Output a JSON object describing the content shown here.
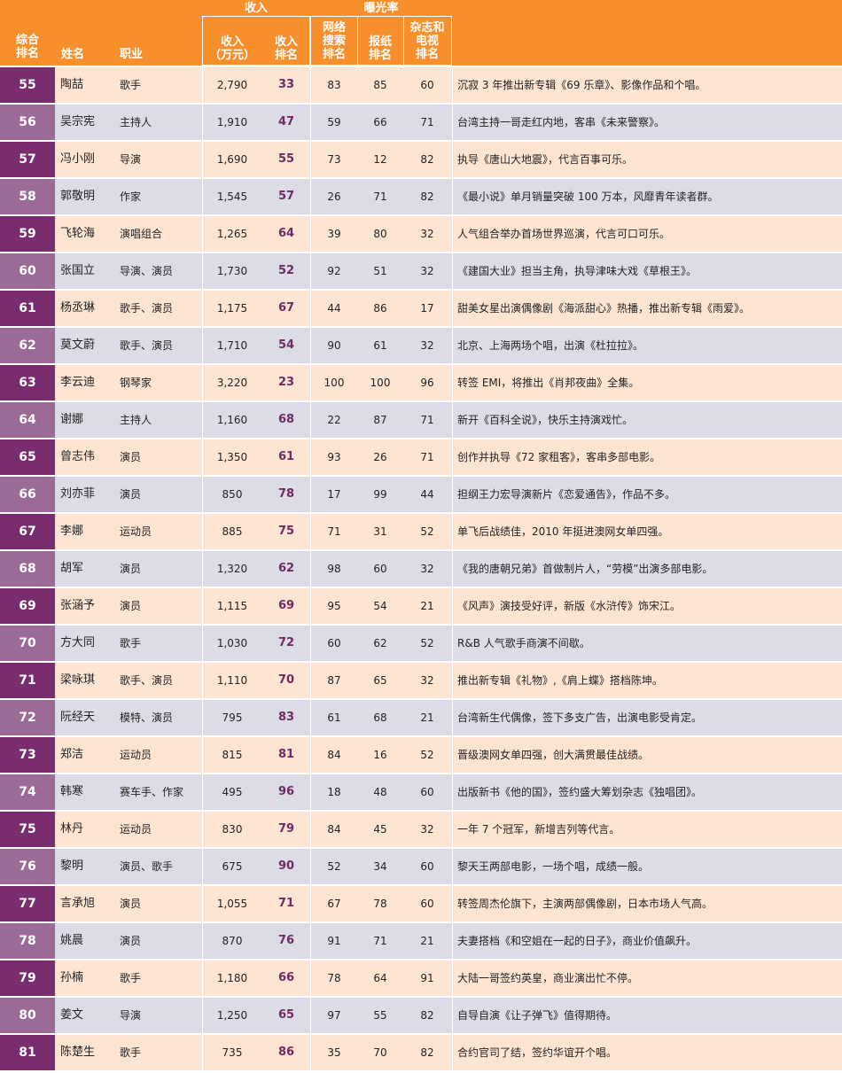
{
  "headers": {
    "overall_rank": "综合\n排名",
    "name": "姓名",
    "job": "职业",
    "income_group": "收入",
    "exposure_group": "曝光率",
    "income": "收入\n（万元）",
    "income_rank": "收入\n排名",
    "web_rank": "网络\n搜索\n排名",
    "paper_rank": "报纸\n排名",
    "tv_rank": "杂志和\n电视\n排名"
  },
  "colors": {
    "header_bg": "#f7902c",
    "row_odd_bg": "#fde5d2",
    "row_even_bg": "#dcdce6",
    "rank_odd_bg": "#7a2d6e",
    "rank_even_bg": "#9c6a96",
    "income_rank_text": "#6e2a62"
  },
  "rows": [
    {
      "rank": "55",
      "name": "陶喆",
      "job": "歌手",
      "income": "2,790",
      "income_rank": "33",
      "web": "83",
      "paper": "85",
      "tv": "60",
      "note": "沉寂 3 年推出新专辑《69 乐章》、影像作品和个唱。"
    },
    {
      "rank": "56",
      "name": "吴宗宪",
      "job": "主持人",
      "income": "1,910",
      "income_rank": "47",
      "web": "59",
      "paper": "66",
      "tv": "71",
      "note": "台湾主持一哥走红内地，客串《未来警察》。"
    },
    {
      "rank": "57",
      "name": "冯小刚",
      "job": "导演",
      "income": "1,690",
      "income_rank": "55",
      "web": "73",
      "paper": "12",
      "tv": "82",
      "note": "执导《唐山大地震》，代言百事可乐。"
    },
    {
      "rank": "58",
      "name": "郭敬明",
      "job": "作家",
      "income": "1,545",
      "income_rank": "57",
      "web": "26",
      "paper": "71",
      "tv": "82",
      "note": "《最小说》单月销量突破 100 万本，风靡青年读者群。"
    },
    {
      "rank": "59",
      "name": "飞轮海",
      "job": "演唱组合",
      "income": "1,265",
      "income_rank": "64",
      "web": "39",
      "paper": "80",
      "tv": "32",
      "note": "人气组合举办首场世界巡演，代言可口可乐。"
    },
    {
      "rank": "60",
      "name": "张国立",
      "job": "导演、演员",
      "income": "1,730",
      "income_rank": "52",
      "web": "92",
      "paper": "51",
      "tv": "32",
      "note": "《建国大业》担当主角，执导津味大戏《草根王》。"
    },
    {
      "rank": "61",
      "name": "杨丞琳",
      "job": "歌手、演员",
      "income": "1,175",
      "income_rank": "67",
      "web": "44",
      "paper": "86",
      "tv": "17",
      "note": "甜美女星出演偶像剧《海派甜心》热播，推出新专辑《雨爱》。"
    },
    {
      "rank": "62",
      "name": "莫文蔚",
      "job": "歌手、演员",
      "income": "1,710",
      "income_rank": "54",
      "web": "90",
      "paper": "61",
      "tv": "32",
      "note": "北京、上海两场个唱，出演《杜拉拉》。"
    },
    {
      "rank": "63",
      "name": "李云迪",
      "job": "钢琴家",
      "income": "3,220",
      "income_rank": "23",
      "web": "100",
      "paper": "100",
      "tv": "96",
      "note": "转签 EMI，将推出《肖邦夜曲》全集。"
    },
    {
      "rank": "64",
      "name": "谢娜",
      "job": "主持人",
      "income": "1,160",
      "income_rank": "68",
      "web": "22",
      "paper": "87",
      "tv": "71",
      "note": "新开《百科全说》，快乐主持演戏忙。"
    },
    {
      "rank": "65",
      "name": "曾志伟",
      "job": "演员",
      "income": "1,350",
      "income_rank": "61",
      "web": "93",
      "paper": "26",
      "tv": "71",
      "note": "创作并执导《72 家租客》，客串多部电影。"
    },
    {
      "rank": "66",
      "name": "刘亦菲",
      "job": "演员",
      "income": "850",
      "income_rank": "78",
      "web": "17",
      "paper": "99",
      "tv": "44",
      "note": "担纲王力宏导演新片《恋爱通告》，作品不多。"
    },
    {
      "rank": "67",
      "name": "李娜",
      "job": "运动员",
      "income": "885",
      "income_rank": "75",
      "web": "71",
      "paper": "31",
      "tv": "52",
      "note": "单飞后战绩佳，2010 年挺进澳网女单四强。"
    },
    {
      "rank": "68",
      "name": "胡军",
      "job": "演员",
      "income": "1,320",
      "income_rank": "62",
      "web": "98",
      "paper": "60",
      "tv": "32",
      "note": "《我的唐朝兄弟》首做制片人，“劳模”出演多部电影。"
    },
    {
      "rank": "69",
      "name": "张涵予",
      "job": "演员",
      "income": "1,115",
      "income_rank": "69",
      "web": "95",
      "paper": "54",
      "tv": "21",
      "note": "《风声》演技受好评，新版《水浒传》饰宋江。"
    },
    {
      "rank": "70",
      "name": "方大同",
      "job": "歌手",
      "income": "1,030",
      "income_rank": "72",
      "web": "60",
      "paper": "62",
      "tv": "52",
      "note": "R&B 人气歌手商演不间歇。"
    },
    {
      "rank": "71",
      "name": "梁咏琪",
      "job": "歌手、演员",
      "income": "1,110",
      "income_rank": "70",
      "web": "87",
      "paper": "65",
      "tv": "32",
      "note": "推出新专辑《礼物》,《肩上蝶》搭档陈坤。"
    },
    {
      "rank": "72",
      "name": "阮经天",
      "job": "模特、演员",
      "income": "795",
      "income_rank": "83",
      "web": "61",
      "paper": "68",
      "tv": "21",
      "note": "台湾新生代偶像，签下多支广告，出演电影受肯定。"
    },
    {
      "rank": "73",
      "name": "郑洁",
      "job": "运动员",
      "income": "815",
      "income_rank": "81",
      "web": "84",
      "paper": "16",
      "tv": "52",
      "note": "晋级澳网女单四强，创大满贯最佳战绩。"
    },
    {
      "rank": "74",
      "name": "韩寒",
      "job": "赛车手、作家",
      "income": "495",
      "income_rank": "96",
      "web": "18",
      "paper": "48",
      "tv": "60",
      "note": "出版新书《他的国》，签约盛大筹划杂志《独唱团》。"
    },
    {
      "rank": "75",
      "name": "林丹",
      "job": "运动员",
      "income": "830",
      "income_rank": "79",
      "web": "84",
      "paper": "45",
      "tv": "32",
      "note": "一年 7 个冠军，新增吉列等代言。"
    },
    {
      "rank": "76",
      "name": "黎明",
      "job": "演员、歌手",
      "income": "675",
      "income_rank": "90",
      "web": "52",
      "paper": "34",
      "tv": "60",
      "note": "黎天王两部电影，一场个唱，成绩一般。"
    },
    {
      "rank": "77",
      "name": "言承旭",
      "job": "演员",
      "income": "1,055",
      "income_rank": "71",
      "web": "67",
      "paper": "78",
      "tv": "60",
      "note": "转签周杰伦旗下，主演两部偶像剧，日本市场人气高。"
    },
    {
      "rank": "78",
      "name": "姚晨",
      "job": "演员",
      "income": "870",
      "income_rank": "76",
      "web": "91",
      "paper": "71",
      "tv": "21",
      "note": "夫妻搭档《和空姐在一起的日子》，商业价值飙升。"
    },
    {
      "rank": "79",
      "name": "孙楠",
      "job": "歌手",
      "income": "1,180",
      "income_rank": "66",
      "web": "78",
      "paper": "64",
      "tv": "91",
      "note": "大陆一哥签约英皇，商业演出忙不停。"
    },
    {
      "rank": "80",
      "name": "姜文",
      "job": "导演",
      "income": "1,250",
      "income_rank": "65",
      "web": "97",
      "paper": "55",
      "tv": "82",
      "note": "自导自演《让子弹飞》值得期待。"
    },
    {
      "rank": "81",
      "name": "陈楚生",
      "job": "歌手",
      "income": "735",
      "income_rank": "86",
      "web": "35",
      "paper": "70",
      "tv": "82",
      "note": "合约官司了结，签约华谊开个唱。"
    }
  ]
}
